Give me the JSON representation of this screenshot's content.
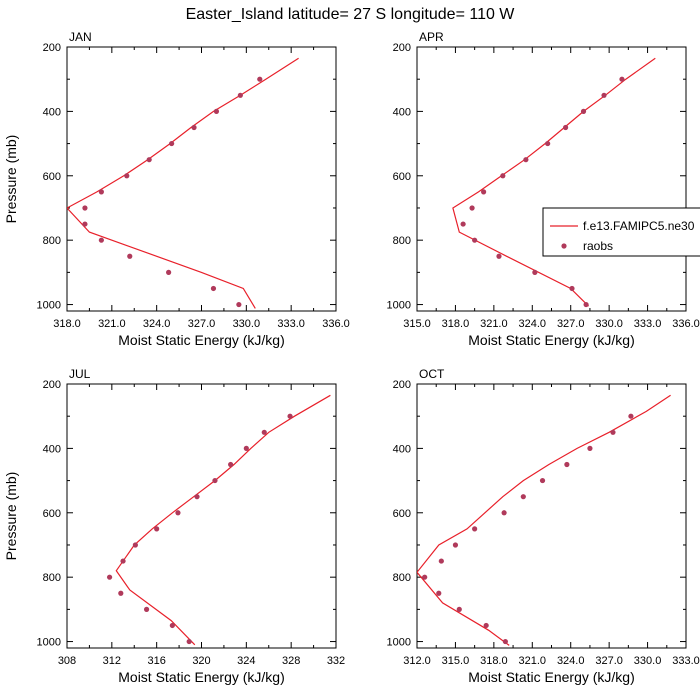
{
  "title": "Easter_Island  latitude= 27 S longitude= 110 W",
  "colors": {
    "model": "#e8202a",
    "obs": "#b03a5b",
    "axis": "#000000"
  },
  "legend": {
    "model_label": "f.e13.FAMIPC5.ne30",
    "obs_label": "raobs"
  },
  "chart_data": [
    {
      "type": "line",
      "panel": "JAN",
      "xlabel": "Moist Static Energy (kJ/kg)",
      "ylabel": "Pressure (mb)",
      "xlim": [
        318,
        336
      ],
      "ylim": [
        1020,
        200
      ],
      "xticks": [
        318,
        321,
        324,
        327,
        330,
        333,
        336
      ],
      "xtick_labels": [
        "318.0",
        "321.0",
        "324.0",
        "327.0",
        "330.0",
        "333.0",
        "336.0"
      ],
      "yticks": [
        200,
        400,
        600,
        800,
        1000
      ],
      "ytick_labels": [
        "200",
        "400",
        "600",
        "800",
        "1000"
      ],
      "series": [
        {
          "name": "f.e13.FAMIPC5.ne30",
          "points": [
            [
              333.5,
              235
            ],
            [
              331.3,
              300
            ],
            [
              329.6,
              350
            ],
            [
              327.8,
              400
            ],
            [
              326.3,
              450
            ],
            [
              324.9,
              500
            ],
            [
              323.4,
              550
            ],
            [
              321.8,
              600
            ],
            [
              320.0,
              650
            ],
            [
              318.0,
              700
            ],
            [
              319.5,
              775
            ],
            [
              327.0,
              900
            ],
            [
              329.8,
              950
            ],
            [
              330.6,
              1012
            ]
          ]
        },
        {
          "name": "raobs",
          "marker": "dot",
          "points": [
            [
              330.9,
              300
            ],
            [
              329.6,
              350
            ],
            [
              328.0,
              400
            ],
            [
              326.5,
              450
            ],
            [
              325.0,
              500
            ],
            [
              323.5,
              550
            ],
            [
              322.0,
              600
            ],
            [
              320.3,
              650
            ],
            [
              319.2,
              700
            ],
            [
              319.2,
              750
            ],
            [
              320.3,
              800
            ],
            [
              322.2,
              850
            ],
            [
              324.8,
              900
            ],
            [
              327.8,
              950
            ],
            [
              329.5,
              1000
            ]
          ]
        }
      ]
    },
    {
      "type": "line",
      "panel": "APR",
      "xlabel": "Moist Static Energy (kJ/kg)",
      "ylabel": "",
      "xlim": [
        315,
        336
      ],
      "ylim": [
        1020,
        200
      ],
      "xticks": [
        315,
        318,
        321,
        324,
        327,
        330,
        333,
        336
      ],
      "xtick_labels": [
        "315.0",
        "318.0",
        "321.0",
        "324.0",
        "327.0",
        "330.0",
        "333.0",
        "336.0"
      ],
      "yticks": [
        200,
        400,
        600,
        800,
        1000
      ],
      "ytick_labels": [
        "200",
        "400",
        "600",
        "800",
        "1000"
      ],
      "series": [
        {
          "name": "f.e13.FAMIPC5.ne30",
          "points": [
            [
              333.6,
              235
            ],
            [
              331.3,
              300
            ],
            [
              329.7,
              350
            ],
            [
              328.0,
              400
            ],
            [
              326.5,
              450
            ],
            [
              325.0,
              500
            ],
            [
              323.4,
              550
            ],
            [
              321.6,
              600
            ],
            [
              319.8,
              650
            ],
            [
              317.8,
              700
            ],
            [
              318.3,
              775
            ],
            [
              322.0,
              850
            ],
            [
              327.0,
              950
            ],
            [
              328.4,
              1005
            ]
          ]
        },
        {
          "name": "raobs",
          "marker": "dot",
          "points": [
            [
              331.0,
              300
            ],
            [
              329.6,
              350
            ],
            [
              328.0,
              400
            ],
            [
              326.6,
              450
            ],
            [
              325.2,
              500
            ],
            [
              323.5,
              550
            ],
            [
              321.7,
              600
            ],
            [
              320.2,
              650
            ],
            [
              319.3,
              700
            ],
            [
              318.6,
              750
            ],
            [
              319.5,
              800
            ],
            [
              321.4,
              850
            ],
            [
              324.2,
              900
            ],
            [
              327.1,
              950
            ],
            [
              328.2,
              1000
            ]
          ]
        }
      ]
    },
    {
      "type": "line",
      "panel": "JUL",
      "xlabel": "Moist Static Energy (kJ/kg)",
      "ylabel": "Pressure (mb)",
      "xlim": [
        308,
        332
      ],
      "ylim": [
        1020,
        200
      ],
      "xticks": [
        308,
        312,
        316,
        320,
        324,
        328,
        332
      ],
      "xtick_labels": [
        "308",
        "312",
        "316",
        "320",
        "324",
        "328",
        "332"
      ],
      "yticks": [
        200,
        400,
        600,
        800,
        1000
      ],
      "ytick_labels": [
        "200",
        "400",
        "600",
        "800",
        "1000"
      ],
      "series": [
        {
          "name": "f.e13.FAMIPC5.ne30",
          "points": [
            [
              331.5,
              235
            ],
            [
              328.3,
              300
            ],
            [
              326.0,
              350
            ],
            [
              324.4,
              400
            ],
            [
              322.9,
              450
            ],
            [
              321.2,
              500
            ],
            [
              319.3,
              550
            ],
            [
              317.4,
              600
            ],
            [
              315.6,
              650
            ],
            [
              314.0,
              700
            ],
            [
              312.4,
              780
            ],
            [
              313.6,
              840
            ],
            [
              317.3,
              935
            ],
            [
              319.4,
              1010
            ]
          ]
        },
        {
          "name": "raobs",
          "marker": "dot",
          "points": [
            [
              327.9,
              300
            ],
            [
              325.6,
              350
            ],
            [
              324.0,
              400
            ],
            [
              322.6,
              450
            ],
            [
              321.2,
              500
            ],
            [
              319.6,
              550
            ],
            [
              317.9,
              600
            ],
            [
              316.0,
              650
            ],
            [
              314.1,
              700
            ],
            [
              313.0,
              750
            ],
            [
              311.8,
              800
            ],
            [
              312.8,
              850
            ],
            [
              315.1,
              900
            ],
            [
              317.4,
              950
            ],
            [
              318.9,
              1000
            ]
          ]
        }
      ]
    },
    {
      "type": "line",
      "panel": "OCT",
      "xlabel": "Moist Static Energy (kJ/kg)",
      "ylabel": "",
      "xlim": [
        312,
        333
      ],
      "ylim": [
        1020,
        200
      ],
      "xticks": [
        312,
        315,
        318,
        321,
        324,
        327,
        330,
        333
      ],
      "xtick_labels": [
        "312.0",
        "315.0",
        "318.0",
        "321.0",
        "324.0",
        "327.0",
        "330.0",
        "333.0"
      ],
      "yticks": [
        200,
        400,
        600,
        800,
        1000
      ],
      "ytick_labels": [
        "200",
        "400",
        "600",
        "800",
        "1000"
      ],
      "series": [
        {
          "name": "f.e13.FAMIPC5.ne30",
          "points": [
            [
              331.8,
              235
            ],
            [
              329.9,
              285
            ],
            [
              327.0,
              350
            ],
            [
              324.5,
              400
            ],
            [
              322.3,
              450
            ],
            [
              320.3,
              500
            ],
            [
              318.7,
              550
            ],
            [
              317.3,
              600
            ],
            [
              315.9,
              650
            ],
            [
              313.7,
              700
            ],
            [
              312.0,
              785
            ],
            [
              314.0,
              880
            ],
            [
              317.6,
              965
            ],
            [
              319.2,
              1012
            ]
          ]
        },
        {
          "name": "raobs",
          "marker": "dot",
          "points": [
            [
              328.7,
              300
            ],
            [
              327.3,
              350
            ],
            [
              325.5,
              400
            ],
            [
              323.7,
              450
            ],
            [
              321.8,
              500
            ],
            [
              320.3,
              550
            ],
            [
              318.8,
              600
            ],
            [
              316.5,
              650
            ],
            [
              315.0,
              700
            ],
            [
              313.9,
              750
            ],
            [
              312.6,
              800
            ],
            [
              313.7,
              850
            ],
            [
              315.3,
              900
            ],
            [
              317.4,
              950
            ],
            [
              318.9,
              1000
            ]
          ]
        }
      ]
    }
  ]
}
